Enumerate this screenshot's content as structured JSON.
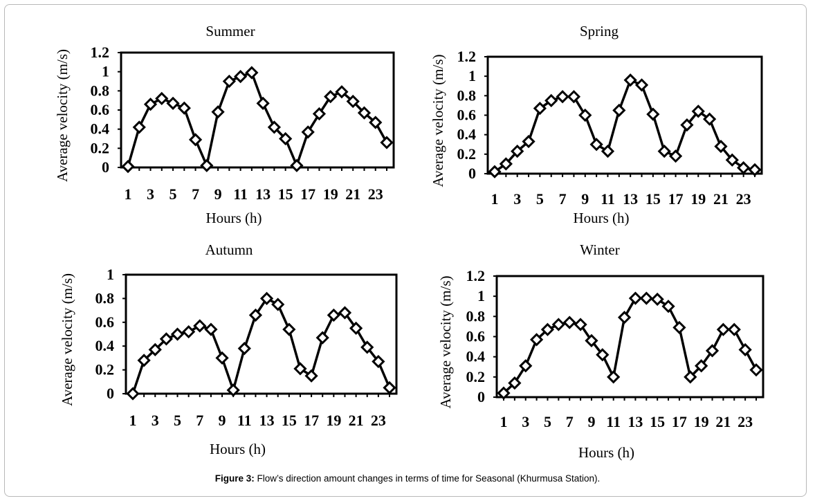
{
  "caption": {
    "label": "Figure 3:",
    "text": "Flow’s direction amount changes in terms of time for Seasonal (Khurmusa Station)."
  },
  "chart_data": [
    {
      "type": "line",
      "title": "Summer",
      "xlabel": "Hours (h)",
      "ylabel": "Average velocity (m/s)",
      "x": [
        1,
        2,
        3,
        4,
        5,
        6,
        7,
        8,
        9,
        10,
        11,
        12,
        13,
        14,
        15,
        16,
        17,
        18,
        19,
        20,
        21,
        22,
        23,
        24
      ],
      "xticks": [
        "1",
        "3",
        "5",
        "7",
        "9",
        "11",
        "13",
        "15",
        "17",
        "19",
        "21",
        "23"
      ],
      "yticks": [
        "0",
        "0.2",
        "0.4",
        "0.6",
        "0.8",
        "1",
        "1.2"
      ],
      "ylim": [
        0,
        1.2
      ],
      "values": [
        0.01,
        0.42,
        0.66,
        0.72,
        0.67,
        0.62,
        0.29,
        0.02,
        0.58,
        0.9,
        0.95,
        0.99,
        0.67,
        0.42,
        0.3,
        0.02,
        0.37,
        0.56,
        0.74,
        0.79,
        0.69,
        0.57,
        0.47,
        0.26
      ],
      "marker": "diamond",
      "color": "#000000"
    },
    {
      "type": "line",
      "title": "Spring",
      "xlabel": "Hours (h)",
      "ylabel": "Average velocity (m/s)",
      "x": [
        1,
        2,
        3,
        4,
        5,
        6,
        7,
        8,
        9,
        10,
        11,
        12,
        13,
        14,
        15,
        16,
        17,
        18,
        19,
        20,
        21,
        22,
        23,
        24
      ],
      "xticks": [
        "1",
        "3",
        "5",
        "7",
        "9",
        "11",
        "13",
        "15",
        "17",
        "19",
        "21",
        "23"
      ],
      "yticks": [
        "0",
        "0.2",
        "0.4",
        "0.6",
        "0.8",
        "1",
        "1.2"
      ],
      "ylim": [
        0,
        1.2
      ],
      "values": [
        0.02,
        0.1,
        0.23,
        0.33,
        0.67,
        0.75,
        0.79,
        0.79,
        0.6,
        0.3,
        0.23,
        0.65,
        0.96,
        0.91,
        0.61,
        0.23,
        0.18,
        0.5,
        0.64,
        0.56,
        0.28,
        0.14,
        0.06,
        0.04
      ],
      "marker": "diamond",
      "color": "#000000"
    },
    {
      "type": "line",
      "title": "Autumn",
      "xlabel": "Hours (h)",
      "ylabel": "Average velocity (m/s)",
      "x": [
        1,
        2,
        3,
        4,
        5,
        6,
        7,
        8,
        9,
        10,
        11,
        12,
        13,
        14,
        15,
        16,
        17,
        18,
        19,
        20,
        21,
        22,
        23,
        24
      ],
      "xticks": [
        "1",
        "3",
        "5",
        "7",
        "9",
        "11",
        "13",
        "15",
        "17",
        "19",
        "21",
        "23"
      ],
      "yticks": [
        "0",
        "0.2",
        "0.4",
        "0.6",
        "0.8",
        "1"
      ],
      "ylim": [
        0,
        1
      ],
      "values": [
        0.0,
        0.28,
        0.37,
        0.46,
        0.5,
        0.52,
        0.57,
        0.54,
        0.3,
        0.03,
        0.38,
        0.66,
        0.8,
        0.75,
        0.54,
        0.21,
        0.15,
        0.47,
        0.66,
        0.68,
        0.55,
        0.39,
        0.27,
        0.05
      ],
      "marker": "diamond",
      "color": "#000000"
    },
    {
      "type": "line",
      "title": "Winter",
      "xlabel": "Hours (h)",
      "ylabel": "Average velocity (m/s)",
      "x": [
        1,
        2,
        3,
        4,
        5,
        6,
        7,
        8,
        9,
        10,
        11,
        12,
        13,
        14,
        15,
        16,
        17,
        18,
        19,
        20,
        21,
        22,
        23,
        24
      ],
      "xticks": [
        "1",
        "3",
        "5",
        "7",
        "9",
        "11",
        "13",
        "15",
        "17",
        "19",
        "21",
        "23"
      ],
      "yticks": [
        "0",
        "0.2",
        "0.4",
        "0.6",
        "0.8",
        "1",
        "1.2"
      ],
      "ylim": [
        0,
        1.2
      ],
      "values": [
        0.04,
        0.14,
        0.31,
        0.57,
        0.67,
        0.72,
        0.74,
        0.72,
        0.56,
        0.42,
        0.2,
        0.79,
        0.98,
        0.98,
        0.97,
        0.9,
        0.69,
        0.2,
        0.31,
        0.46,
        0.67,
        0.67,
        0.47,
        0.27
      ],
      "marker": "diamond",
      "color": "#000000"
    }
  ]
}
